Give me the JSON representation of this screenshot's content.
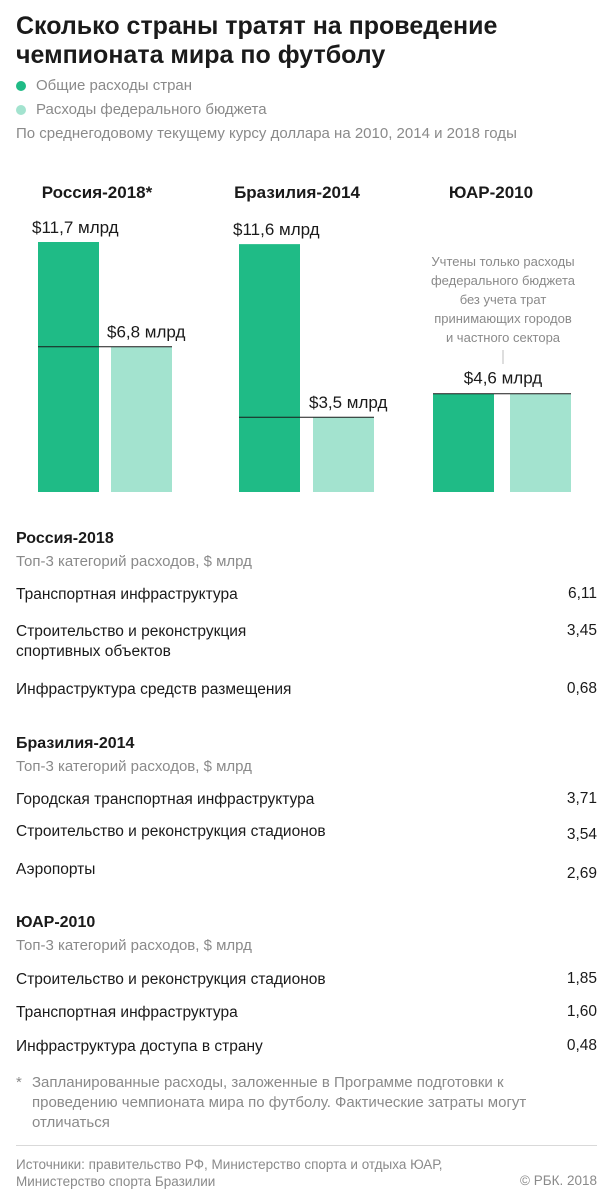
{
  "title": "Сколько страны тратят на проведение чемпионата мира по футболу",
  "legend": [
    {
      "label": "Общие расходы стран",
      "color": "#1fbb86"
    },
    {
      "label": "Расходы федерального бюджета",
      "color": "#a3e3cf"
    }
  ],
  "subtitle": "По среднегодовому текущему курсу доллара на 2010, 2014 и 2018 годы",
  "chart_data": {
    "type": "bar",
    "categories": [
      "Россия-2018*",
      "Бразилия-2014",
      "ЮАР-2010"
    ],
    "series": [
      {
        "name": "Общие расходы стран",
        "values": [
          11.7,
          11.6,
          4.6
        ],
        "labels": [
          "$11,7 млрд",
          "$11,6 млрд",
          "$4,6 млрд"
        ]
      },
      {
        "name": "Расходы федерального бюджета",
        "values": [
          6.8,
          3.5,
          4.6
        ],
        "labels": [
          "$6,8 млрд",
          "$3,5 млрд",
          ""
        ]
      }
    ],
    "annotation": "Учтены только расходы федерального бюджета без учета трат принимающих городов и частного сектора",
    "colors": {
      "total": "#1fbb86",
      "federal": "#a3e3cf"
    },
    "ylim": [
      0,
      11.7
    ]
  },
  "breakdowns": [
    {
      "title": "Россия-2018",
      "subtitle": "Топ-3 категорий расходов, $ млрд",
      "rows": [
        {
          "label": "Транспортная инфраструктура",
          "value": "6,11"
        },
        {
          "label": "Строительство и реконструкция спортивных объектов",
          "value": "3,45"
        },
        {
          "label": "Инфраструктура средств размещения",
          "value": "0,68"
        }
      ]
    },
    {
      "title": "Бразилия-2014",
      "subtitle": "Топ-3 категорий расходов, $ млрд",
      "rows": [
        {
          "label": "Городская транспортная инфраструктура",
          "value": "3,71"
        },
        {
          "label": "Строительство и реконструкция стадионов",
          "value": "3,54"
        },
        {
          "label": "Аэропорты",
          "value": "2,69"
        }
      ]
    },
    {
      "title": "ЮАР-2010",
      "subtitle": "Топ-3 категорий расходов, $ млрд",
      "rows": [
        {
          "label": "Строительство и реконструкция стадионов",
          "value": "1,85"
        },
        {
          "label": "Транспортная инфраструктура",
          "value": "1,60"
        },
        {
          "label": "Инфраструктура доступа в страну",
          "value": "0,48"
        }
      ]
    }
  ],
  "footnote": {
    "mark": "*",
    "text": "Запланированные расходы, заложенные в Программе подготовки к проведению чемпионата мира по футболу. Фактические затраты могут отличаться"
  },
  "sources": "Источники: правительство РФ, Министерство спорта и отдыха ЮАР, Министерство спорта Бразилии",
  "copyright": "© РБК. 2018"
}
